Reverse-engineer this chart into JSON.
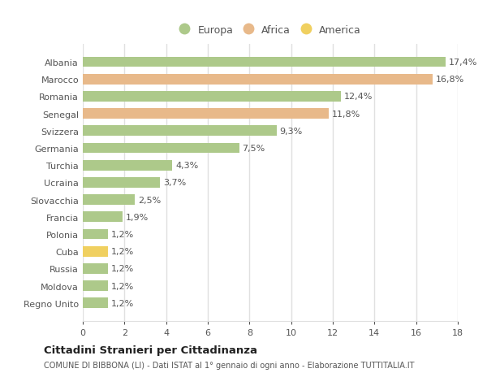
{
  "countries": [
    "Albania",
    "Marocco",
    "Romania",
    "Senegal",
    "Svizzera",
    "Germania",
    "Turchia",
    "Ucraina",
    "Slovacchia",
    "Francia",
    "Polonia",
    "Cuba",
    "Russia",
    "Moldova",
    "Regno Unito"
  ],
  "values": [
    17.4,
    16.8,
    12.4,
    11.8,
    9.3,
    7.5,
    4.3,
    3.7,
    2.5,
    1.9,
    1.2,
    1.2,
    1.2,
    1.2,
    1.2
  ],
  "labels": [
    "17,4%",
    "16,8%",
    "12,4%",
    "11,8%",
    "9,3%",
    "7,5%",
    "4,3%",
    "3,7%",
    "2,5%",
    "1,9%",
    "1,2%",
    "1,2%",
    "1,2%",
    "1,2%",
    "1,2%"
  ],
  "colors": [
    "#adc98a",
    "#e8b98a",
    "#adc98a",
    "#e8b98a",
    "#adc98a",
    "#adc98a",
    "#adc98a",
    "#adc98a",
    "#adc98a",
    "#adc98a",
    "#adc98a",
    "#f0d060",
    "#adc98a",
    "#adc98a",
    "#adc98a"
  ],
  "legend_labels": [
    "Europa",
    "Africa",
    "America"
  ],
  "legend_colors": [
    "#adc98a",
    "#e8b98a",
    "#f0d060"
  ],
  "title": "Cittadini Stranieri per Cittadinanza",
  "subtitle": "COMUNE DI BIBBONA (LI) - Dati ISTAT al 1° gennaio di ogni anno - Elaborazione TUTTITALIA.IT",
  "xlim": [
    0,
    18
  ],
  "xticks": [
    0,
    2,
    4,
    6,
    8,
    10,
    12,
    14,
    16,
    18
  ],
  "background_color": "#ffffff",
  "grid_color": "#e0e0e0",
  "bar_height": 0.6,
  "label_fontsize": 8,
  "ytick_fontsize": 8,
  "xtick_fontsize": 8
}
